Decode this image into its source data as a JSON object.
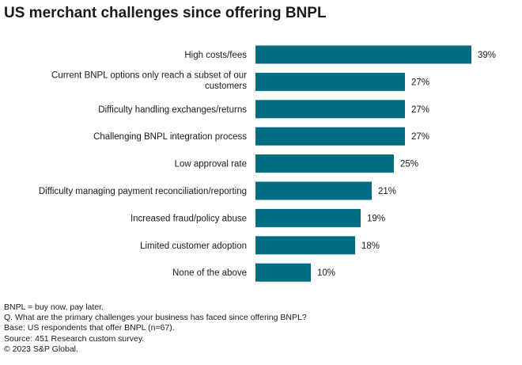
{
  "title": "US merchant challenges since offering BNPL",
  "chart_data": {
    "type": "bar",
    "orientation": "horizontal",
    "title": "US merchant challenges since offering BNPL",
    "xlabel": "",
    "ylabel": "",
    "xlim": [
      0,
      45
    ],
    "grid": false,
    "legend": "none",
    "bar_color": "#006E82",
    "categories": [
      "High costs/fees",
      "Current BNPL options only reach a subset of our customers",
      "Difficulty handling exchanges/returns",
      "Challenging BNPL integration process",
      "Low approval rate",
      "Difficulty managing payment reconciliation/reporting",
      "Increased fraud/policy abuse",
      "Limited customer adoption",
      "None of the above"
    ],
    "category_lines": [
      [
        "High costs/fees"
      ],
      [
        "Current BNPL options only reach a subset of our",
        "customers"
      ],
      [
        "Difficulty handling exchanges/returns"
      ],
      [
        "Challenging BNPL integration process"
      ],
      [
        "Low approval rate"
      ],
      [
        "Difficulty managing payment reconciliation/reporting"
      ],
      [
        "Increased fraud/policy abuse"
      ],
      [
        "Limited customer adoption"
      ],
      [
        "None of the above"
      ]
    ],
    "values": [
      39,
      27,
      27,
      27,
      25,
      21,
      19,
      18,
      10
    ],
    "value_labels": [
      "39%",
      "27%",
      "27%",
      "27%",
      "25%",
      "21%",
      "19%",
      "18%",
      "10%"
    ]
  },
  "notes": [
    "BNPL = buy now, pay later.",
    "Q. What are the primary challenges your business has faced since offering BNPL?",
    "Base: US respondents that offer BNPL (n=67).",
    "Source: 451 Research custom survey.",
    "© 2023 S&P Global."
  ]
}
